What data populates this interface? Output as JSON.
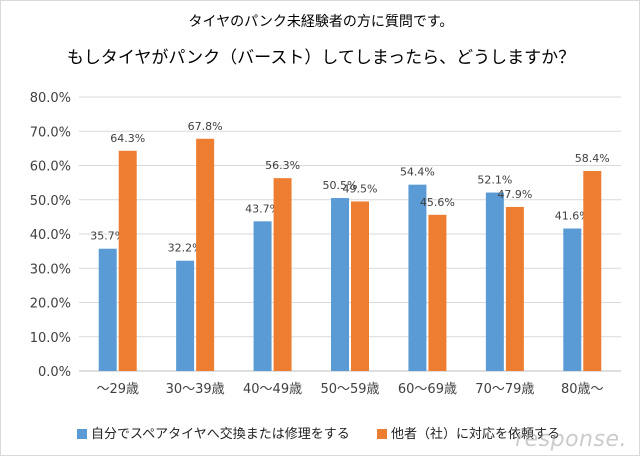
{
  "title_line1": "タイヤのパンク未経験者の方に質問です。",
  "title_line2": "もしタイヤがパンク（バースト）してしまったら、どうしますか？",
  "watermark": "response.",
  "colors": {
    "series1": "#5b9bd5",
    "series2": "#ed7d31",
    "grid": "#d9d9d9",
    "axis": "#bfbfbf",
    "label": "#404040"
  },
  "chart_data": {
    "type": "bar",
    "categories": [
      "～29歳",
      "30～39歳",
      "40～49歳",
      "50～59歳",
      "60～69歳",
      "70～79歳",
      "80歳～"
    ],
    "series": [
      {
        "name": "自分でスペアタイヤへ交換または修理をする",
        "values": [
          35.7,
          32.2,
          43.7,
          50.5,
          54.4,
          52.1,
          41.6
        ],
        "labels": [
          "35.7%",
          "32.2%",
          "43.7%",
          "50.5%",
          "54.4%",
          "52.1%",
          "41.6%"
        ]
      },
      {
        "name": "他者（社）に対応を依頼する",
        "values": [
          64.3,
          67.8,
          56.3,
          49.5,
          45.6,
          47.9,
          58.4
        ],
        "labels": [
          "64.3%",
          "67.8%",
          "56.3%",
          "49.5%",
          "45.6%",
          "47.9%",
          "58.4%"
        ]
      }
    ],
    "ylim": [
      0,
      80
    ],
    "yticks": [
      0,
      10,
      20,
      30,
      40,
      50,
      60,
      70,
      80
    ],
    "ytick_labels": [
      "0.0%",
      "10.0%",
      "20.0%",
      "30.0%",
      "40.0%",
      "50.0%",
      "60.0%",
      "70.0%",
      "80.0%"
    ],
    "grid": true,
    "legend_position": "bottom"
  }
}
